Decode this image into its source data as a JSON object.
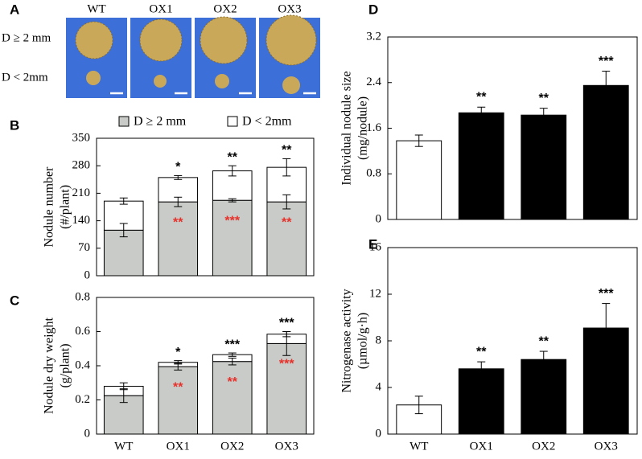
{
  "photo_panel": {
    "panel": "A",
    "columns": [
      "WT",
      "OX1",
      "OX2",
      "OX3"
    ],
    "rows": [
      "D ≥ 2 mm",
      "D < 2mm"
    ]
  },
  "chart_data": [
    {
      "type": "stacked_bar",
      "panel": "B",
      "ylabel": [
        "Nodule number",
        "(#/plant)"
      ],
      "categories": [
        null,
        null,
        null,
        null
      ],
      "legend": true,
      "ylim": [
        0,
        350
      ],
      "yticks": [
        0,
        70,
        140,
        210,
        280,
        350
      ],
      "series": [
        {
          "name": "D ≥ 2 mm",
          "color": "#c8cbc8",
          "values": [
            116,
            188,
            192,
            188
          ],
          "errors": [
            17,
            12,
            4,
            18
          ],
          "annotations": [
            null,
            "**",
            "***",
            "**"
          ],
          "annotation_color": "#e8302a",
          "annotation_position": "inside"
        },
        {
          "name": "D < 2mm",
          "color": "#ffffff",
          "values": [
            74,
            62,
            75,
            88
          ],
          "errors": [
            8,
            5,
            13,
            22
          ],
          "annotations": [
            null,
            "*",
            "**",
            "**"
          ],
          "annotation_color": "#000000",
          "annotation_position": "above"
        }
      ]
    },
    {
      "type": "stacked_bar",
      "panel": "C",
      "ylabel": [
        "Nodule dry weight",
        "(g/plant)"
      ],
      "categories": [
        "WT",
        "OX1",
        "OX2",
        "OX3"
      ],
      "legend": false,
      "ylim": [
        0,
        0.8
      ],
      "yticks": [
        0,
        0.2,
        0.4,
        0.6,
        0.8
      ],
      "series": [
        {
          "color": "#c8cbc8",
          "values": [
            0.225,
            0.395,
            0.425,
            0.53
          ],
          "errors": [
            0.04,
            0.02,
            0.02,
            0.07
          ],
          "annotations": [
            null,
            "**",
            "**",
            "***"
          ],
          "annotation_color": "#e8302a",
          "annotation_position": "inside"
        },
        {
          "color": "#ffffff",
          "values": [
            0.055,
            0.025,
            0.04,
            0.055
          ],
          "errors": [
            0.02,
            0.01,
            0.01,
            0.015
          ],
          "annotations": [
            null,
            "*",
            "***",
            "***"
          ],
          "annotation_color": "#000000",
          "annotation_position": "above"
        }
      ]
    },
    {
      "type": "bar",
      "panel": "D",
      "ylabel": [
        "Individual  nodule size",
        "(mg/nodule)"
      ],
      "categories": [
        null,
        null,
        null,
        null
      ],
      "ylim": [
        0,
        3.2
      ],
      "yticks": [
        0,
        0.8,
        1.6,
        2.4,
        3.2
      ],
      "values": [
        1.38,
        1.87,
        1.83,
        2.35
      ],
      "errors": [
        0.1,
        0.1,
        0.12,
        0.25
      ],
      "colors": [
        "#ffffff",
        "#000000",
        "#000000",
        "#000000"
      ],
      "annotations": [
        null,
        "**",
        "**",
        "***"
      ]
    },
    {
      "type": "bar",
      "panel": "E",
      "ylabel": [
        "Nitrogenase activity",
        "(µmol/g·h)"
      ],
      "categories": [
        "WT",
        "OX1",
        "OX2",
        "OX3"
      ],
      "ylim": [
        0,
        16
      ],
      "yticks": [
        0,
        4,
        8,
        12,
        16
      ],
      "values": [
        2.5,
        5.6,
        6.4,
        9.1
      ],
      "errors": [
        0.75,
        0.6,
        0.7,
        2.1
      ],
      "colors": [
        "#ffffff",
        "#000000",
        "#000000",
        "#000000"
      ],
      "annotations": [
        null,
        "**",
        "**",
        "***"
      ]
    }
  ]
}
